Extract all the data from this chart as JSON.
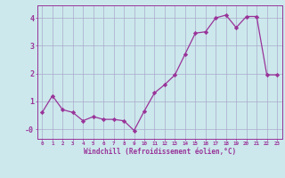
{
  "x": [
    0,
    1,
    2,
    3,
    4,
    5,
    6,
    7,
    8,
    9,
    10,
    11,
    12,
    13,
    14,
    15,
    16,
    17,
    18,
    19,
    20,
    21,
    22,
    23
  ],
  "y": [
    0.6,
    1.2,
    0.7,
    0.6,
    0.3,
    0.45,
    0.35,
    0.35,
    0.3,
    -0.05,
    0.65,
    1.3,
    1.6,
    1.95,
    2.7,
    3.45,
    3.5,
    4.0,
    4.1,
    3.65,
    4.05,
    4.05,
    1.95,
    1.95
  ],
  "line_color": "#993399",
  "marker": "D",
  "marker_size": 2.2,
  "bg_color": "#cce8ec",
  "grid_color": "#aaaacc",
  "xlabel": "Windchill (Refroidissement éolien,°C)",
  "xlabel_color": "#993399",
  "tick_color": "#993399",
  "ylim": [
    -0.35,
    4.45
  ],
  "xlim": [
    -0.5,
    23.5
  ],
  "ytick_vals": [
    4,
    3,
    2,
    1,
    0
  ],
  "ytick_labels": [
    "4",
    "3",
    "2",
    "1",
    "-0"
  ],
  "xtick_labels": [
    "0",
    "1",
    "2",
    "3",
    "4",
    "5",
    "6",
    "7",
    "8",
    "9",
    "10",
    "11",
    "12",
    "13",
    "14",
    "15",
    "16",
    "17",
    "18",
    "19",
    "20",
    "21",
    "22",
    "23"
  ]
}
